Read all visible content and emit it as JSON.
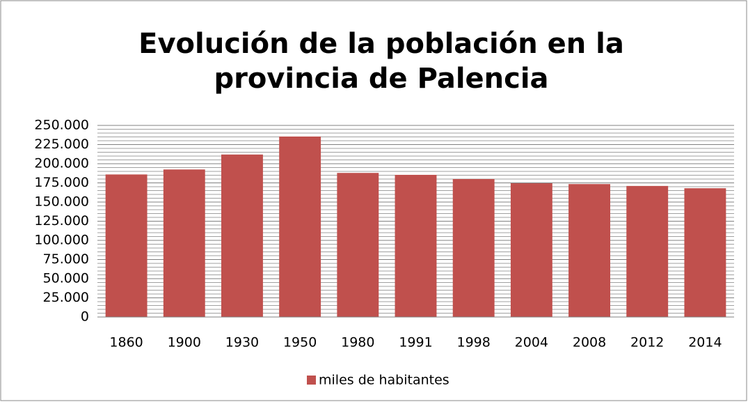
{
  "chart_data": {
    "type": "bar",
    "title": "Evolución de la población en la provincia de Palencia",
    "categories": [
      "1860",
      "1900",
      "1930",
      "1950",
      "1980",
      "1991",
      "1998",
      "2004",
      "2008",
      "2012",
      "2014"
    ],
    "series": [
      {
        "name": "miles de habitantes",
        "color": "#c0504d",
        "values": [
          186000,
          192500,
          212000,
          235500,
          188000,
          185500,
          180000,
          174500,
          173500,
          171000,
          168000
        ]
      }
    ],
    "ylim": [
      0,
      250000
    ],
    "yticks": [
      0,
      {
        "value": 25000,
        "label": "25.000"
      },
      {
        "value": 50000,
        "label": "50.000"
      },
      {
        "value": 75000,
        "label": "75.000"
      },
      {
        "value": 100000,
        "label": "100.000"
      },
      {
        "value": 125000,
        "label": "125.000"
      },
      {
        "value": 150000,
        "label": "150.000"
      },
      {
        "value": 175000,
        "label": "175.000"
      },
      {
        "value": 200000,
        "label": "200.000"
      },
      {
        "value": 225000,
        "label": "225.000"
      },
      {
        "value": 250000,
        "label": "250.000"
      }
    ],
    "grid": true,
    "minor_grid_step": 5000,
    "legend": "bottom"
  }
}
